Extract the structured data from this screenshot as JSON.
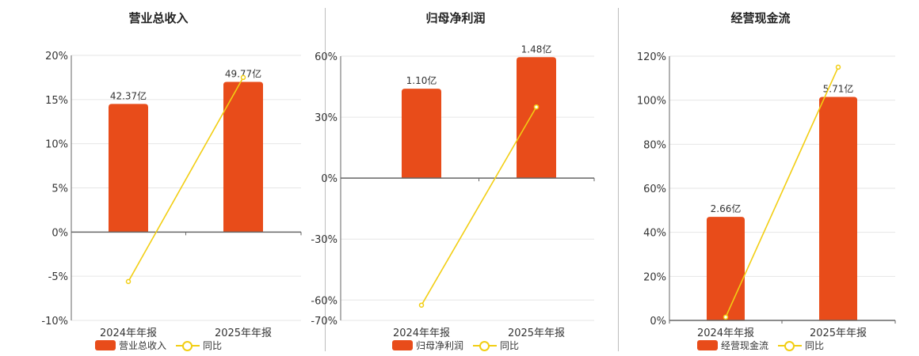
{
  "colors": {
    "bar": "#E84C1A",
    "line": "#F2CE13",
    "grid": "#e6e6e6",
    "axis": "#666666"
  },
  "chart_data": [
    {
      "type": "bar",
      "title": "营业总收入",
      "categories": [
        "2024年年报",
        "2025年年报"
      ],
      "bar_values_pct_axis": [
        14.5,
        17.0
      ],
      "bar_labels": [
        "42.37亿",
        "49.77亿"
      ],
      "series": [
        {
          "name": "营业总收入",
          "labels": [
            "42.37亿",
            "49.77亿"
          ]
        },
        {
          "name": "同比",
          "values": [
            -5.6,
            17.5
          ]
        }
      ],
      "yticks": [
        "20%",
        "15%",
        "10%",
        "5%",
        "0%",
        "-5%",
        "-10%"
      ],
      "ylim": [
        -10,
        20
      ],
      "ytick_values": [
        20,
        15,
        10,
        5,
        0,
        -5,
        -10
      ],
      "grid": true,
      "legend": "bottom"
    },
    {
      "type": "bar",
      "title": "归母净利润",
      "categories": [
        "2024年年报",
        "2025年年报"
      ],
      "bar_values_pct_axis": [
        44,
        59.5
      ],
      "bar_labels": [
        "1.10亿",
        "1.48亿"
      ],
      "series": [
        {
          "name": "归母净利润",
          "labels": [
            "1.10亿",
            "1.48亿"
          ]
        },
        {
          "name": "同比",
          "values": [
            -62.5,
            35
          ]
        }
      ],
      "yticks": [
        "60%",
        "30%",
        "0%",
        "-30%",
        "-60%",
        "-70%"
      ],
      "ylim": [
        -70,
        60
      ],
      "ytick_values": [
        60,
        30,
        0,
        -30,
        -60,
        -70
      ],
      "grid": true,
      "legend": "bottom"
    },
    {
      "type": "bar",
      "title": "经营现金流",
      "categories": [
        "2024年年报",
        "2025年年报"
      ],
      "bar_values_pct_axis": [
        47,
        101.5
      ],
      "bar_labels": [
        "2.66亿",
        "5.71亿"
      ],
      "series": [
        {
          "name": "经营现金流",
          "labels": [
            "2.66亿",
            "5.71亿"
          ]
        },
        {
          "name": "同比",
          "values": [
            1.5,
            115
          ]
        }
      ],
      "yticks": [
        "120%",
        "100%",
        "80%",
        "60%",
        "40%",
        "20%",
        "0%"
      ],
      "ylim": [
        0,
        120
      ],
      "ytick_values": [
        120,
        100,
        80,
        60,
        40,
        20,
        0
      ],
      "grid": true,
      "legend": "bottom"
    }
  ]
}
